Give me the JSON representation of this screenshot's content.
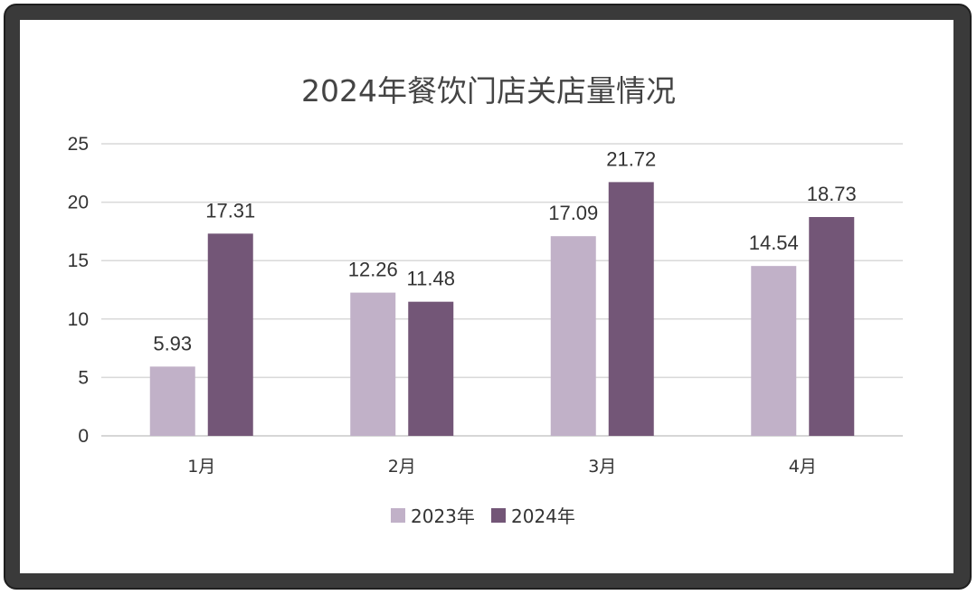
{
  "chart_data": {
    "type": "bar",
    "title": "2024年餐饮门店关店量情况",
    "categories": [
      "1月",
      "2月",
      "3月",
      "4月"
    ],
    "series": [
      {
        "name": "2023年",
        "values": [
          5.93,
          12.26,
          17.09,
          14.54
        ],
        "color": "#c1b1c8"
      },
      {
        "name": "2024年",
        "values": [
          17.31,
          11.48,
          21.72,
          18.73
        ],
        "color": "#735677"
      }
    ],
    "ylim": [
      0,
      25
    ],
    "yticks": [
      0,
      5,
      10,
      15,
      20,
      25
    ],
    "grid": true,
    "legend": "bottom-center",
    "data_labels": true
  }
}
